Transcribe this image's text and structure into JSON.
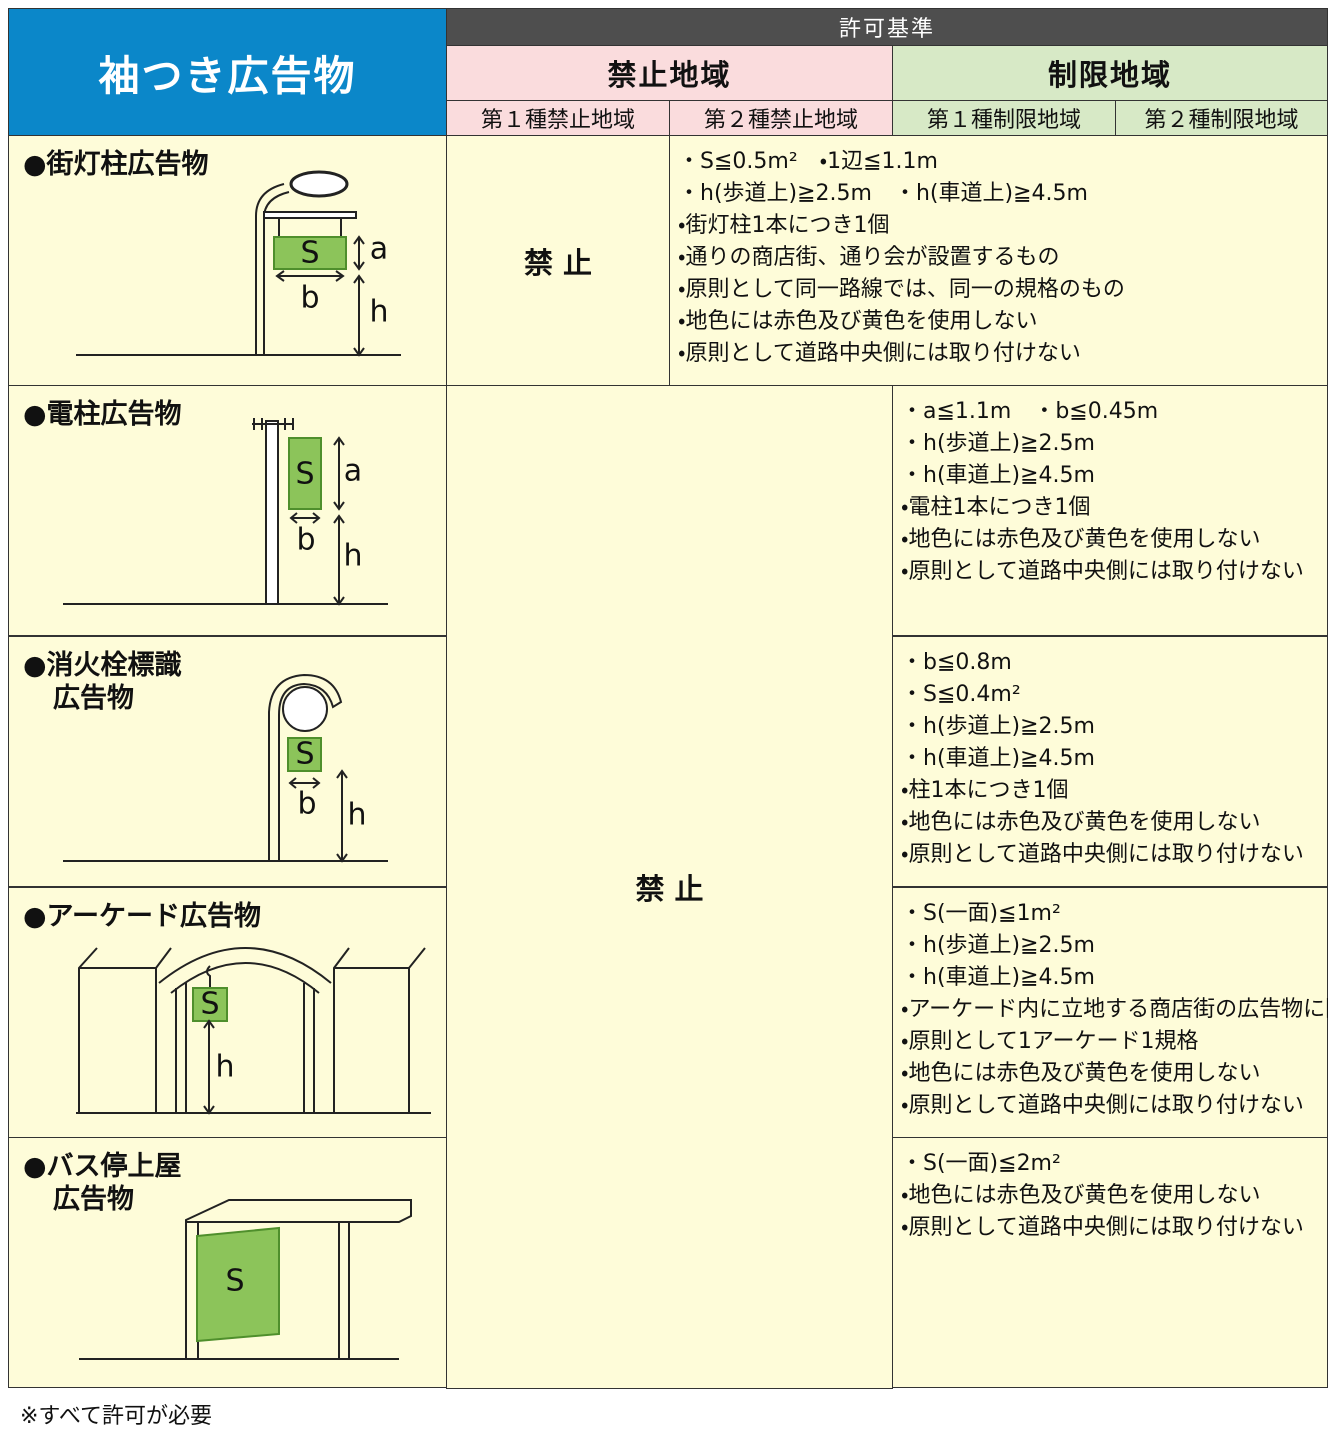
{
  "header": {
    "title": "袖つき広告物",
    "criteria": "許可基準",
    "prohibited": "禁止地域",
    "restricted": "制限地域",
    "sub": [
      "第１種禁止地域",
      "第２種禁止地域",
      "第１種制限地域",
      "第２種制限地域"
    ]
  },
  "prohibition": "禁 止",
  "rows": [
    {
      "name": [
        "●街灯柱広告物"
      ],
      "diagram_labels": [
        "S",
        "a",
        "b",
        "h"
      ],
      "conditions": [
        "・S≦0.5m²　・1辺≦1.1m",
        "・h(歩道上)≧2.5m　・h(車道上)≧4.5m",
        "・街灯柱1本につき1個",
        "・通りの商店街、通り会が設置するもの",
        "・原則として同一路線では、同一の規格のもの",
        "・地色には赤色及び黄色を使用しない",
        "・原則として道路中央側には取り付けない"
      ]
    },
    {
      "name": [
        "●電柱広告物"
      ],
      "diagram_labels": [
        "S",
        "a",
        "b",
        "h"
      ],
      "conditions": [
        "・a≦1.1m　・b≦0.45m",
        "・h(歩道上)≧2.5m",
        "・h(車道上)≧4.5m",
        "・電柱1本につき1個",
        "・地色には赤色及び黄色を使用しない",
        "・原則として道路中央側には取り付けない"
      ]
    },
    {
      "name": [
        "●消火栓標識",
        "広告物"
      ],
      "diagram_labels": [
        "S",
        "b",
        "h"
      ],
      "conditions": [
        "・b≦0.8m",
        "・S≦0.4m²",
        "・h(歩道上)≧2.5m",
        "・h(車道上)≧4.5m",
        "・柱1本につき1個",
        "・地色には赤色及び黄色を使用しない",
        "・原則として道路中央側には取り付けない"
      ]
    },
    {
      "name": [
        "●アーケード広告物"
      ],
      "diagram_labels": [
        "S",
        "h"
      ],
      "conditions": [
        "・S(一面)≦1m²",
        "・h(歩道上)≧2.5m",
        "・h(車道上)≧4.5m",
        "・アーケード内に立地する商店街の広告物に限る",
        "・原則として1アーケード1規格",
        "・地色には赤色及び黄色を使用しない",
        "・原則として道路中央側には取り付けない"
      ]
    },
    {
      "name": [
        "●バス停上屋",
        "広告物"
      ],
      "diagram_labels": [
        "S"
      ],
      "conditions": [
        "・S(一面)≦2m²",
        "・地色には赤色及び黄色を使用しない",
        "・原則として道路中央側には取り付けない"
      ]
    }
  ],
  "footnote": "※すべて許可が必要"
}
